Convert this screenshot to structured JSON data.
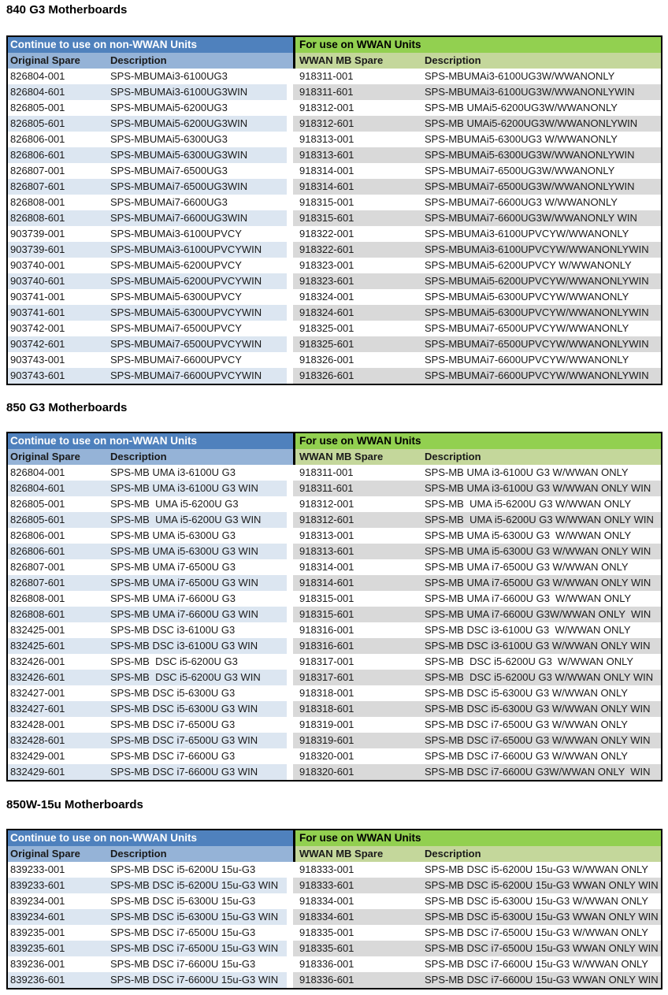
{
  "colors": {
    "header_blue": "#4F81BD",
    "header_blue_light": "#95B3D7",
    "header_green": "#92D050",
    "header_green_light": "#C4D79B",
    "stripe_blue": "#DCE6F1",
    "stripe_gray": "#D9D9D9",
    "divider": "#000000",
    "header_left_text": "#FFFFFF"
  },
  "sections": [
    {
      "title": "840 G3 Motherboards",
      "left_header": "Continue to use on non-WWAN Units",
      "right_header": "For use on WWAN Units",
      "columns": [
        "Original Spare",
        "Description",
        "WWAN MB Spare",
        "Description"
      ],
      "rows": [
        [
          "826804-001",
          "SPS-MBUMAi3-6100UG3",
          "918311-001",
          "SPS-MBUMAi3-6100UG3W/WWANONLY"
        ],
        [
          "826804-601",
          "SPS-MBUMAi3-6100UG3WIN",
          "918311-601",
          "SPS-MBUMAi3-6100UG3W/WWANONLYWIN"
        ],
        [
          "826805-001",
          "SPS-MBUMAi5-6200UG3",
          "918312-001",
          "SPS-MB UMAi5-6200UG3W/WWANONLY"
        ],
        [
          "826805-601",
          "SPS-MBUMAi5-6200UG3WIN",
          "918312-601",
          "SPS-MB UMAi5-6200UG3W/WWANONLYWIN"
        ],
        [
          "826806-001",
          "SPS-MBUMAi5-6300UG3",
          "918313-001",
          "SPS-MBUMAi5-6300UG3 W/WWANONLY"
        ],
        [
          "826806-601",
          "SPS-MBUMAi5-6300UG3WIN",
          "918313-601",
          "SPS-MBUMAi5-6300UG3W/WWANONLYWIN"
        ],
        [
          "826807-001",
          "SPS-MBUMAi7-6500UG3",
          "918314-001",
          "SPS-MBUMAi7-6500UG3W/WWANONLY"
        ],
        [
          "826807-601",
          "SPS-MBUMAi7-6500UG3WIN",
          "918314-601",
          "SPS-MBUMAi7-6500UG3W/WWANONLYWIN"
        ],
        [
          "826808-001",
          "SPS-MBUMAi7-6600UG3",
          "918315-001",
          "SPS-MBUMAi7-6600UG3 W/WWANONLY"
        ],
        [
          "826808-601",
          "SPS-MBUMAi7-6600UG3WIN",
          "918315-601",
          "SPS-MBUMAi7-6600UG3W/WWANONLY WIN"
        ],
        [
          "903739-001",
          "SPS-MBUMAi3-6100UPVCY",
          "918322-001",
          "SPS-MBUMAi3-6100UPVCYW/WWANONLY"
        ],
        [
          "903739-601",
          "SPS-MBUMAi3-6100UPVCYWIN",
          "918322-601",
          "SPS-MBUMAi3-6100UPVCYW/WWANONLYWIN"
        ],
        [
          "903740-001",
          "SPS-MBUMAi5-6200UPVCY",
          "918323-001",
          "SPS-MBUMAi5-6200UPVCY W/WWANONLY"
        ],
        [
          "903740-601",
          "SPS-MBUMAi5-6200UPVCYWIN",
          "918323-601",
          "SPS-MBUMAi5-6200UPVCYW/WWANONLYWIN"
        ],
        [
          "903741-001",
          "SPS-MBUMAi5-6300UPVCY",
          "918324-001",
          "SPS-MBUMAi5-6300UPVCYW/WWANONLY"
        ],
        [
          "903741-601",
          "SPS-MBUMAi5-6300UPVCYWIN",
          "918324-601",
          "SPS-MBUMAi5-6300UPVCYW/WWANONLYWIN"
        ],
        [
          "903742-001",
          "SPS-MBUMAi7-6500UPVCY",
          "918325-001",
          "SPS-MBUMAi7-6500UPVCYW/WWANONLY"
        ],
        [
          "903742-601",
          "SPS-MBUMAi7-6500UPVCYWIN",
          "918325-601",
          "SPS-MBUMAi7-6500UPVCYW/WWANONLYWIN"
        ],
        [
          "903743-001",
          "SPS-MBUMAi7-6600UPVCY",
          "918326-001",
          "SPS-MBUMAi7-6600UPVCYW/WWANONLY"
        ],
        [
          "903743-601",
          "SPS-MBUMAi7-6600UPVCYWIN",
          "918326-601",
          "SPS-MBUMAi7-6600UPVCYW/WWANONLYWIN"
        ]
      ]
    },
    {
      "title": "850 G3 Motherboards",
      "left_header": "Continue to use on non-WWAN Units",
      "right_header": "For use on WWAN Units",
      "columns": [
        "Original Spare",
        "Description",
        "WWAN MB Spare",
        "Description"
      ],
      "rows": [
        [
          "826804-001",
          "SPS-MB UMA i3-6100U G3",
          "918311-001",
          "SPS-MB UMA i3-6100U G3 W/WWAN ONLY"
        ],
        [
          "826804-601",
          "SPS-MB UMA i3-6100U G3 WIN",
          "918311-601",
          "SPS-MB UMA i3-6100U G3 W/WWAN ONLY WIN"
        ],
        [
          "826805-001",
          "SPS-MB  UMA i5-6200U G3",
          "918312-001",
          "SPS-MB  UMA i5-6200U G3 W/WWAN ONLY"
        ],
        [
          "826805-601",
          "SPS-MB  UMA i5-6200U G3 WIN",
          "918312-601",
          "SPS-MB  UMA i5-6200U G3 W/WWAN ONLY WIN"
        ],
        [
          "826806-001",
          "SPS-MB UMA i5-6300U G3",
          "918313-001",
          "SPS-MB UMA i5-6300U G3  W/WWAN ONLY"
        ],
        [
          "826806-601",
          "SPS-MB UMA i5-6300U G3 WIN",
          "918313-601",
          "SPS-MB UMA i5-6300U G3 W/WWAN ONLY WIN"
        ],
        [
          "826807-001",
          "SPS-MB UMA i7-6500U G3",
          "918314-001",
          "SPS-MB UMA i7-6500U G3 W/WWAN ONLY"
        ],
        [
          "826807-601",
          "SPS-MB UMA i7-6500U G3 WIN",
          "918314-601",
          "SPS-MB UMA i7-6500U G3 W/WWAN ONLY WIN"
        ],
        [
          "826808-001",
          "SPS-MB UMA i7-6600U G3",
          "918315-001",
          "SPS-MB UMA i7-6600U G3  W/WWAN ONLY"
        ],
        [
          "826808-601",
          "SPS-MB UMA i7-6600U G3 WIN",
          "918315-601",
          "SPS-MB UMA i7-6600U G3W/WWAN ONLY  WIN"
        ],
        [
          "832425-001",
          "SPS-MB DSC i3-6100U G3",
          "918316-001",
          "SPS-MB DSC i3-6100U G3  W/WWAN ONLY"
        ],
        [
          "832425-601",
          "SPS-MB DSC i3-6100U G3 WIN",
          "918316-601",
          "SPS-MB DSC i3-6100U G3 W/WWAN ONLY WIN"
        ],
        [
          "832426-001",
          "SPS-MB  DSC i5-6200U G3",
          "918317-001",
          "SPS-MB  DSC i5-6200U G3  W/WWAN ONLY"
        ],
        [
          "832426-601",
          "SPS-MB  DSC i5-6200U G3 WIN",
          "918317-601",
          "SPS-MB  DSC i5-6200U G3 W/WWAN ONLY WIN"
        ],
        [
          "832427-001",
          "SPS-MB DSC i5-6300U G3",
          "918318-001",
          "SPS-MB DSC i5-6300U G3 W/WWAN ONLY"
        ],
        [
          "832427-601",
          "SPS-MB DSC i5-6300U G3 WIN",
          "918318-601",
          "SPS-MB DSC i5-6300U G3 W/WWAN ONLY WIN"
        ],
        [
          "832428-001",
          "SPS-MB DSC i7-6500U G3",
          "918319-001",
          "SPS-MB DSC i7-6500U G3 W/WWAN ONLY"
        ],
        [
          "832428-601",
          "SPS-MB DSC i7-6500U G3 WIN",
          "918319-601",
          "SPS-MB DSC i7-6500U G3 W/WWAN ONLY WIN"
        ],
        [
          "832429-001",
          "SPS-MB DSC i7-6600U G3",
          "918320-001",
          "SPS-MB DSC i7-6600U G3 W/WWAN ONLY"
        ],
        [
          "832429-601",
          "SPS-MB DSC i7-6600U G3 WIN",
          "918320-601",
          "SPS-MB DSC i7-6600U G3W/WWAN ONLY  WIN"
        ]
      ]
    },
    {
      "title": "850W-15u Motherboards",
      "left_header": "Continue to use on non-WWAN Units",
      "right_header": "For use on WWAN Units",
      "columns": [
        "Original Spare",
        "Description",
        "WWAN MB Spare",
        "Description"
      ],
      "rows": [
        [
          "839233-001",
          "SPS-MB DSC i5-6200U 15u-G3",
          "918333-001",
          "SPS-MB DSC i5-6200U 15u-G3 W/WWAN ONLY"
        ],
        [
          "839233-601",
          "SPS-MB DSC i5-6200U 15u-G3 WIN",
          "918333-601",
          "SPS-MB DSC i5-6200U 15u-G3 WWAN ONLY WIN"
        ],
        [
          "839234-001",
          "SPS-MB DSC i5-6300U 15u-G3",
          "918334-001",
          "SPS-MB DSC i5-6300U 15u-G3 W/WWAN ONLY"
        ],
        [
          "839234-601",
          "SPS-MB DSC i5-6300U 15u-G3 WIN",
          "918334-601",
          "SPS-MB DSC i5-6300U 15u-G3 WWAN ONLY WIN"
        ],
        [
          "839235-001",
          "SPS-MB DSC i7-6500U 15u-G3",
          "918335-001",
          "SPS-MB DSC i7-6500U 15u-G3 W/WWAN ONLY"
        ],
        [
          "839235-601",
          "SPS-MB DSC i7-6500U 15u-G3 WIN",
          "918335-601",
          "SPS-MB DSC i7-6500U 15u-G3 WWAN ONLY WIN"
        ],
        [
          "839236-001",
          "SPS-MB DSC i7-6600U 15u-G3",
          "918336-001",
          "SPS-MB DSC i7-6600U 15u-G3 W/WWAN ONLY"
        ],
        [
          "839236-601",
          "SPS-MB DSC i7-6600U 15u-G3 WIN",
          "918336-601",
          "SPS-MB DSC i7-6600U 15u-G3 WWAN ONLY WIN"
        ]
      ]
    }
  ]
}
